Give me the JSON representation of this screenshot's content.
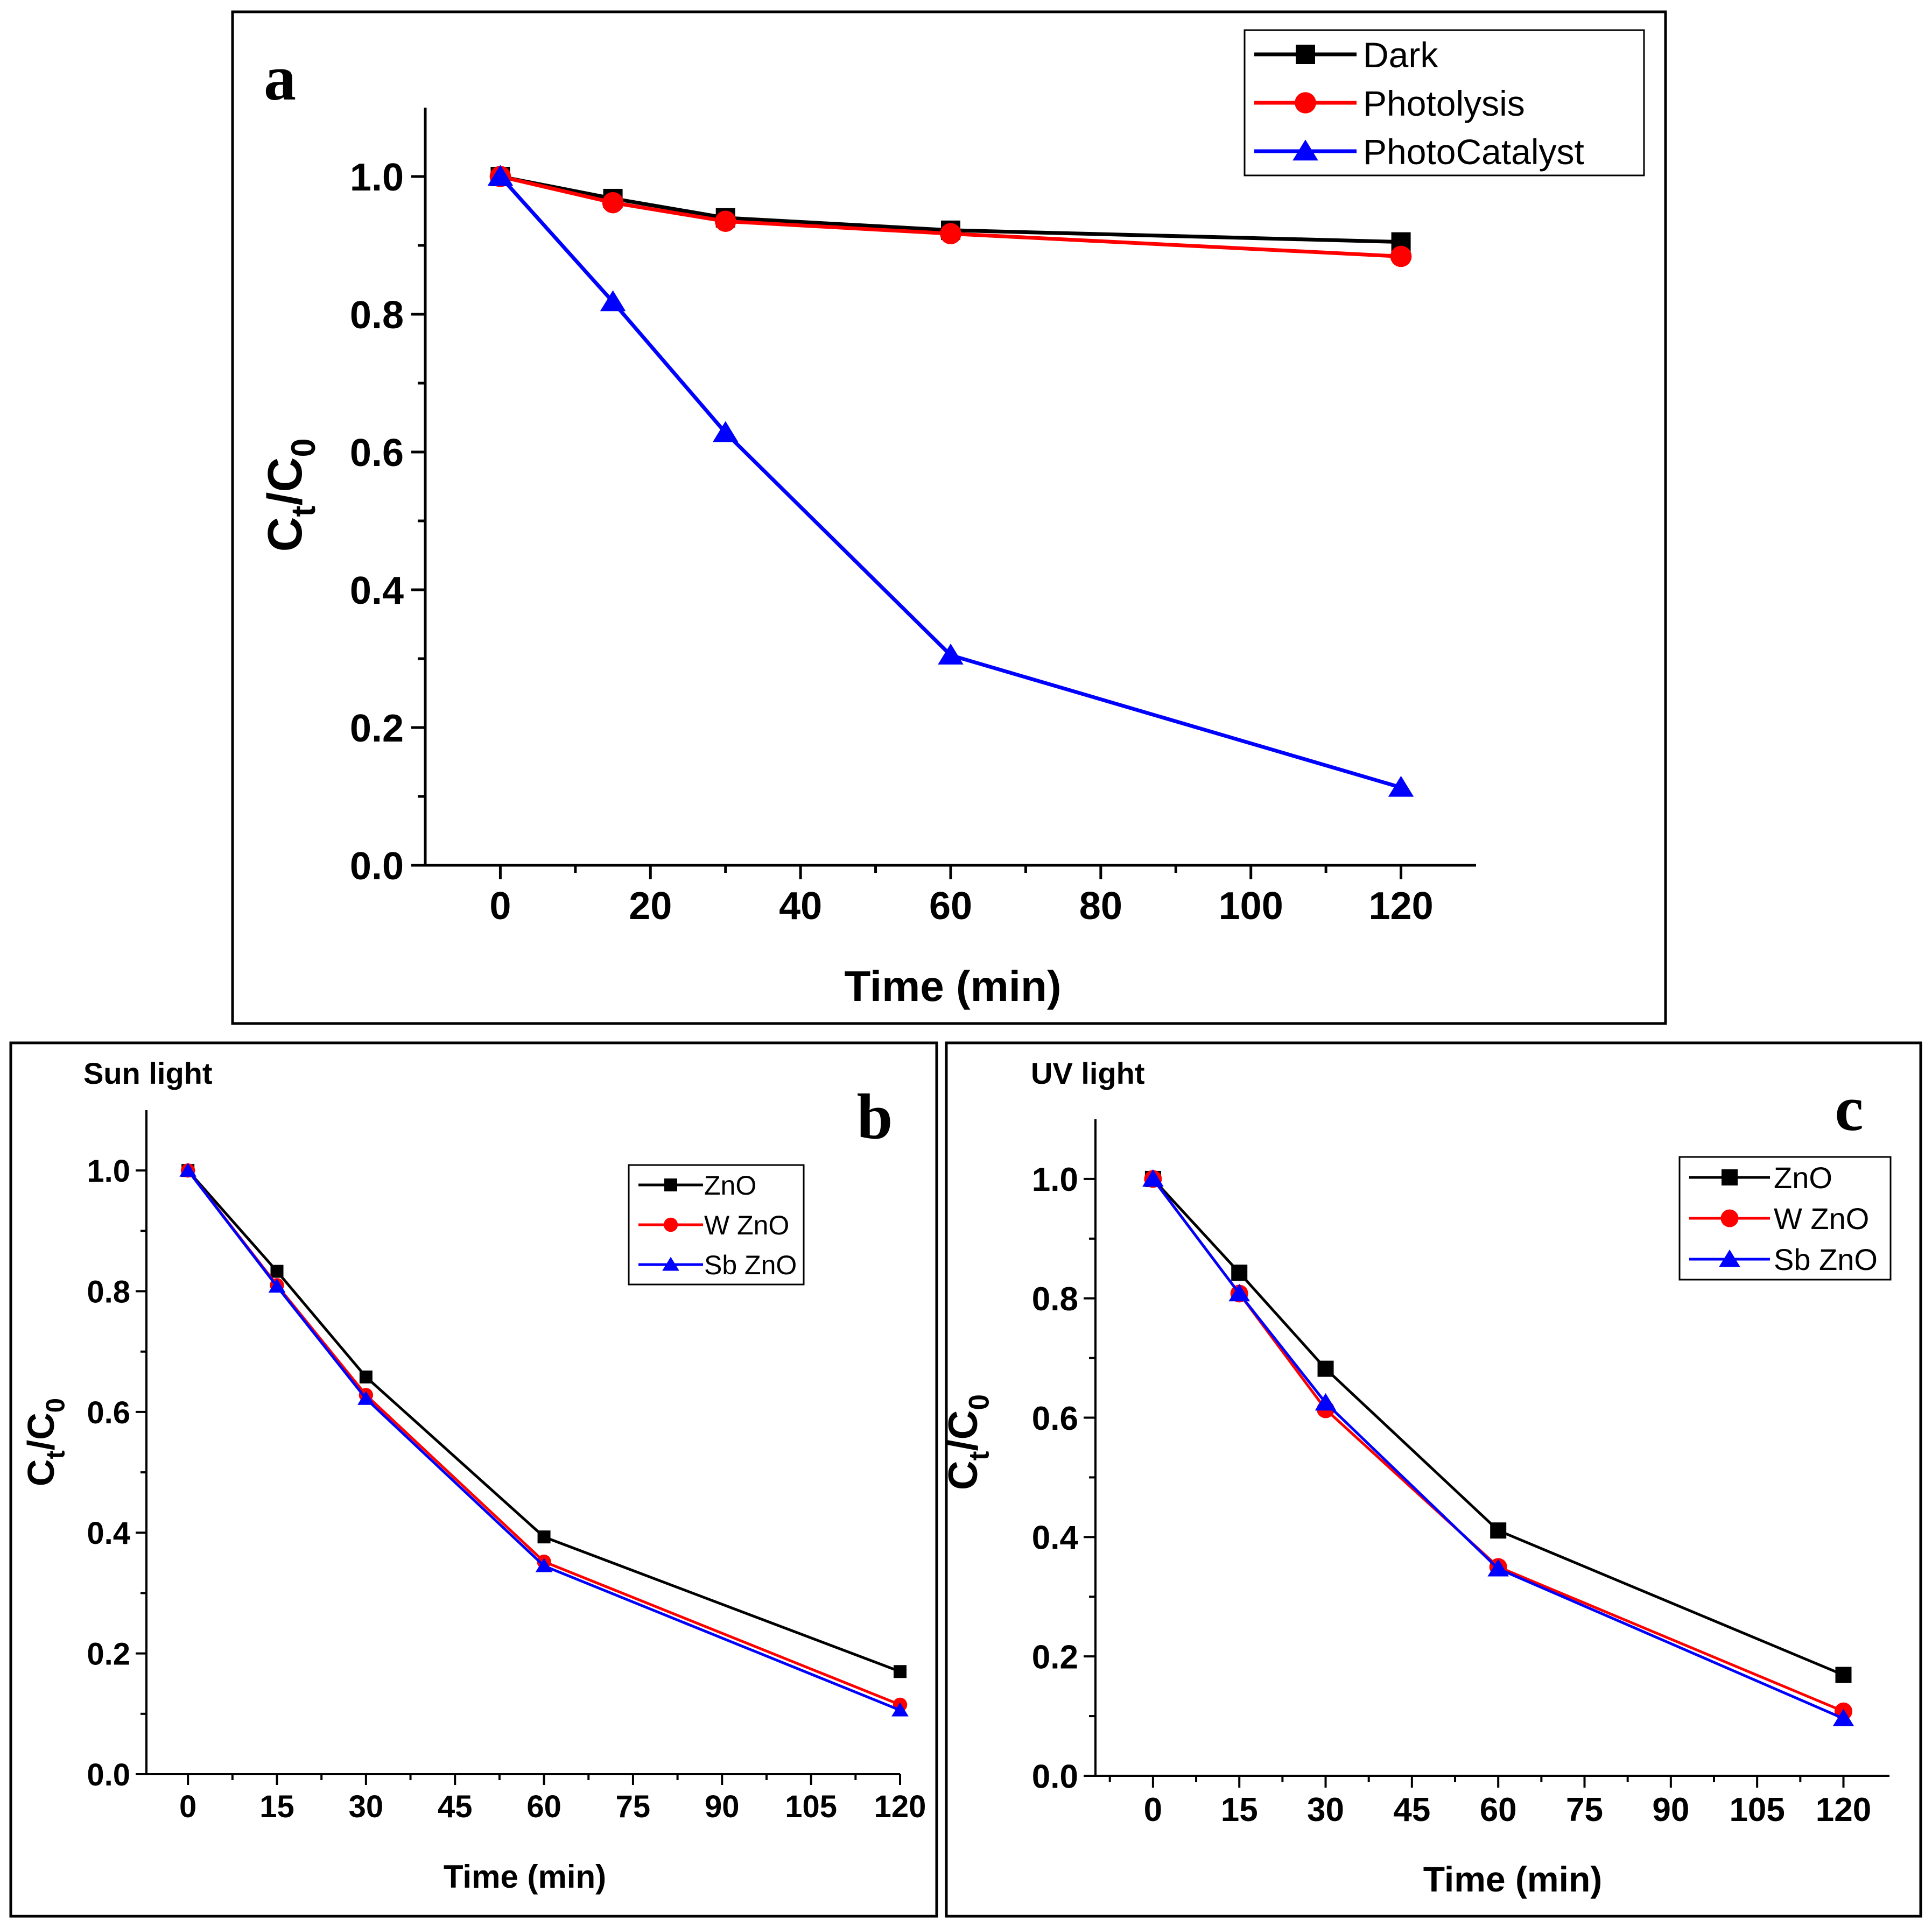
{
  "chart_data": [
    {
      "panel": "a",
      "type": "line",
      "title": "",
      "xlabel": "Time (min)",
      "ylabel": "Ct/C0",
      "ylabel_main": "C",
      "ylabel_sub1": "t",
      "ylabel_mid": "/C",
      "ylabel_sub2": "0",
      "xlim": [
        -10,
        130
      ],
      "ylim": [
        0,
        1.1
      ],
      "xticks": [
        0,
        20,
        40,
        60,
        80,
        100,
        120
      ],
      "yticks": [
        0.0,
        0.2,
        0.4,
        0.6,
        0.8,
        1.0
      ],
      "xtick_labels": [
        "0",
        "20",
        "40",
        "60",
        "80",
        "100",
        "120"
      ],
      "ytick_labels": [
        "0.0",
        "0.2",
        "0.4",
        "0.6",
        "0.8",
        "1.0"
      ],
      "legend_position": "top-right",
      "x": [
        0,
        15,
        30,
        60,
        120
      ],
      "series": [
        {
          "name": "Dark",
          "color": "#000000",
          "marker": "square",
          "values": [
            1.0,
            0.968,
            0.94,
            0.922,
            0.905
          ]
        },
        {
          "name": "Photolysis",
          "color": "#ff0000",
          "marker": "circle",
          "values": [
            1.0,
            0.962,
            0.935,
            0.917,
            0.884
          ]
        },
        {
          "name": "PhotoCatalyst",
          "color": "#0000ff",
          "marker": "triangle",
          "values": [
            1.0,
            0.818,
            0.628,
            0.305,
            0.113
          ]
        }
      ]
    },
    {
      "panel": "b",
      "type": "line",
      "title": "Sun light",
      "xlabel": "Time (min)",
      "ylabel": "Ct/C0",
      "ylabel_main": "C",
      "ylabel_sub1": "t",
      "ylabel_mid": "/C",
      "ylabel_sub2": "0",
      "xlim": [
        -7,
        120
      ],
      "ylim": [
        0,
        1.1
      ],
      "xticks": [
        0,
        15,
        30,
        45,
        60,
        75,
        90,
        105,
        120
      ],
      "yticks": [
        0.0,
        0.2,
        0.4,
        0.6,
        0.8,
        1.0
      ],
      "xtick_labels": [
        "0",
        "15",
        "30",
        "45",
        "60",
        "75",
        "90",
        "105",
        "120"
      ],
      "ytick_labels": [
        "0.0",
        "0.2",
        "0.4",
        "0.6",
        "0.8",
        "1.0"
      ],
      "legend_position": "top-right",
      "x": [
        0,
        15,
        30,
        60,
        120
      ],
      "series": [
        {
          "name": "ZnO",
          "color": "#000000",
          "marker": "square",
          "values": [
            1.0,
            0.833,
            0.658,
            0.393,
            0.17
          ]
        },
        {
          "name": "W ZnO",
          "color": "#ff0000",
          "marker": "circle",
          "values": [
            1.0,
            0.81,
            0.628,
            0.352,
            0.115
          ]
        },
        {
          "name": "Sb ZnO",
          "color": "#0000ff",
          "marker": "triangle",
          "values": [
            1.0,
            0.808,
            0.622,
            0.345,
            0.106
          ]
        }
      ]
    },
    {
      "panel": "c",
      "type": "line",
      "title": "UV light",
      "xlabel": "Time (min)",
      "ylabel": "Ct/C0",
      "ylabel_main": "C",
      "ylabel_sub1": "t",
      "ylabel_mid": "/C",
      "ylabel_sub2": "0",
      "xlim": [
        -10,
        128
      ],
      "ylim": [
        0,
        1.1
      ],
      "xticks": [
        0,
        15,
        30,
        45,
        60,
        75,
        90,
        105,
        120
      ],
      "yticks": [
        0.0,
        0.2,
        0.4,
        0.6,
        0.8,
        1.0
      ],
      "xtick_labels": [
        "0",
        "15",
        "30",
        "45",
        "60",
        "75",
        "90",
        "105",
        "120"
      ],
      "ytick_labels": [
        "0.0",
        "0.2",
        "0.4",
        "0.6",
        "0.8",
        "1.0"
      ],
      "legend_position": "top-right",
      "x": [
        0,
        15,
        30,
        60,
        120
      ],
      "series": [
        {
          "name": "ZnO",
          "color": "#000000",
          "marker": "square",
          "values": [
            1.0,
            0.843,
            0.682,
            0.411,
            0.169
          ]
        },
        {
          "name": "W ZnO",
          "color": "#ff0000",
          "marker": "circle",
          "values": [
            1.0,
            0.808,
            0.614,
            0.35,
            0.108
          ]
        },
        {
          "name": "Sb ZnO",
          "color": "#0000ff",
          "marker": "triangle",
          "values": [
            1.0,
            0.808,
            0.625,
            0.347,
            0.096
          ]
        }
      ]
    }
  ]
}
